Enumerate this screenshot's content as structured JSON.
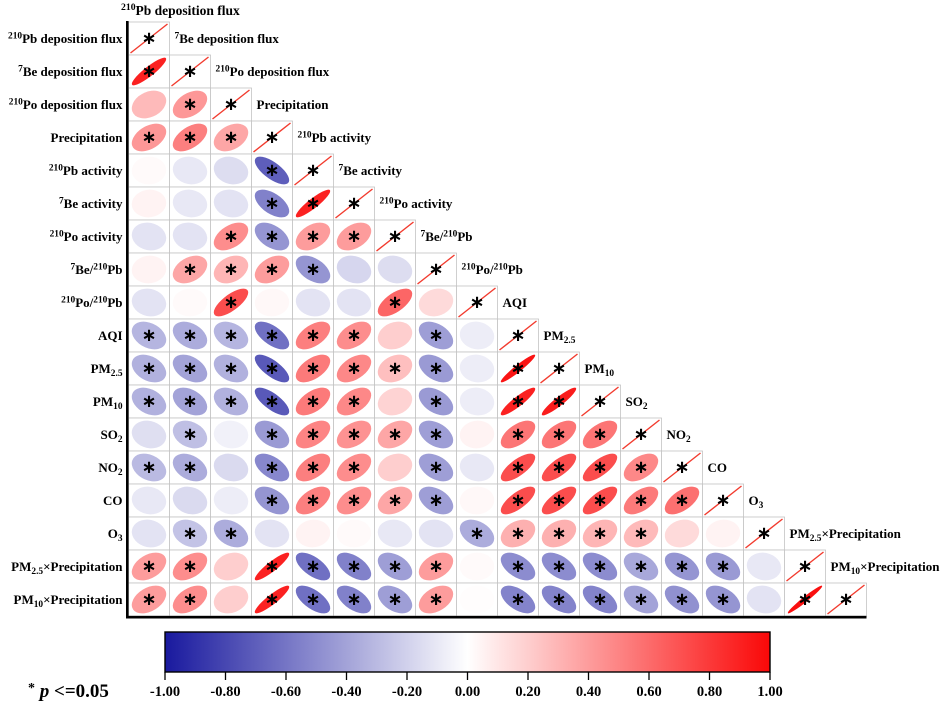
{
  "figure": {
    "legend": {
      "star": "*",
      "p": "p",
      "rest": " <=0.05"
    },
    "colorbar": {
      "min": -1,
      "max": 1,
      "negative_color": "#19199e",
      "zero_color": "#ffffff",
      "positive_color": "#fa0808",
      "ticks": [
        "-1.00",
        "-0.80",
        "-0.60",
        "-0.40",
        "-0.20",
        "0.00",
        "0.20",
        "0.40",
        "0.60",
        "0.80",
        "1.00"
      ]
    }
  },
  "chart_data": {
    "type": "heatmap",
    "subtype": "correlation-ellipse-matrix",
    "significance_marker": "∗",
    "significance_rule": "p <= 0.05",
    "diagonal_value": 1,
    "variables": [
      "^{210}Pb deposition flux",
      "^{7}Be deposition flux",
      "^{210}Po deposition flux",
      "Precipitation",
      "^{210}Pb activity",
      "^{7}Be activity",
      "^{210}Po activity",
      "^{7}Be/^{210}Pb",
      "^{210}Po/^{210}Pb",
      "AQI",
      "PM_{2.5}",
      "PM_{10}",
      "SO_{2}",
      "NO_{2}",
      "CO",
      "O_{3}",
      "PM_{2.5}×Precipitation",
      "PM_{10}×Precipitation"
    ],
    "lower_triangle": [
      [],
      [
        [
          0.9,
          1
        ]
      ],
      [
        [
          0.28,
          0
        ],
        [
          0.42,
          1
        ]
      ],
      [
        [
          0.42,
          1
        ],
        [
          0.52,
          1
        ],
        [
          0.36,
          1
        ]
      ],
      [
        [
          0.02,
          0
        ],
        [
          -0.1,
          0
        ],
        [
          -0.15,
          0
        ],
        [
          -0.7,
          1
        ]
      ],
      [
        [
          0.05,
          0
        ],
        [
          -0.1,
          0
        ],
        [
          -0.12,
          0
        ],
        [
          -0.55,
          1
        ],
        [
          0.9,
          1
        ]
      ],
      [
        [
          -0.12,
          0
        ],
        [
          -0.12,
          0
        ],
        [
          0.46,
          1
        ],
        [
          -0.46,
          1
        ],
        [
          0.4,
          1
        ],
        [
          0.4,
          1
        ]
      ],
      [
        [
          0.05,
          0
        ],
        [
          0.36,
          1
        ],
        [
          0.3,
          1
        ],
        [
          0.4,
          1
        ],
        [
          -0.46,
          1
        ],
        [
          -0.18,
          0
        ],
        [
          -0.15,
          0
        ]
      ],
      [
        [
          -0.12,
          0
        ],
        [
          0.02,
          0
        ],
        [
          0.72,
          1
        ],
        [
          0.03,
          0
        ],
        [
          -0.12,
          0
        ],
        [
          -0.12,
          0
        ],
        [
          0.62,
          1
        ],
        [
          0.15,
          0
        ]
      ],
      [
        [
          -0.32,
          1
        ],
        [
          -0.36,
          1
        ],
        [
          -0.32,
          1
        ],
        [
          -0.62,
          1
        ],
        [
          0.52,
          1
        ],
        [
          0.46,
          1
        ],
        [
          0.2,
          0
        ],
        [
          -0.42,
          1
        ],
        [
          -0.08,
          0
        ]
      ],
      [
        [
          -0.34,
          1
        ],
        [
          -0.4,
          1
        ],
        [
          -0.34,
          1
        ],
        [
          -0.72,
          1
        ],
        [
          0.54,
          1
        ],
        [
          0.48,
          1
        ],
        [
          0.26,
          1
        ],
        [
          -0.44,
          1
        ],
        [
          -0.08,
          0
        ],
        [
          0.95,
          1
        ]
      ],
      [
        [
          -0.34,
          1
        ],
        [
          -0.4,
          1
        ],
        [
          -0.34,
          1
        ],
        [
          -0.72,
          1
        ],
        [
          0.54,
          1
        ],
        [
          0.48,
          1
        ],
        [
          0.18,
          0
        ],
        [
          -0.44,
          1
        ],
        [
          -0.08,
          0
        ],
        [
          0.9,
          1
        ],
        [
          0.92,
          1
        ]
      ],
      [
        [
          -0.14,
          0
        ],
        [
          -0.28,
          1
        ],
        [
          -0.06,
          0
        ],
        [
          -0.44,
          1
        ],
        [
          0.5,
          1
        ],
        [
          0.44,
          1
        ],
        [
          0.36,
          1
        ],
        [
          -0.42,
          1
        ],
        [
          0.05,
          0
        ],
        [
          0.56,
          1
        ],
        [
          0.56,
          1
        ],
        [
          0.56,
          1
        ]
      ],
      [
        [
          -0.3,
          1
        ],
        [
          -0.36,
          1
        ],
        [
          -0.16,
          0
        ],
        [
          -0.52,
          1
        ],
        [
          0.52,
          1
        ],
        [
          0.46,
          1
        ],
        [
          0.2,
          0
        ],
        [
          -0.42,
          1
        ],
        [
          -0.1,
          0
        ],
        [
          0.72,
          1
        ],
        [
          0.72,
          1
        ],
        [
          0.72,
          1
        ],
        [
          0.48,
          1
        ]
      ],
      [
        [
          -0.1,
          0
        ],
        [
          -0.16,
          0
        ],
        [
          -0.08,
          0
        ],
        [
          -0.46,
          1
        ],
        [
          0.52,
          1
        ],
        [
          0.46,
          1
        ],
        [
          0.36,
          1
        ],
        [
          -0.42,
          1
        ],
        [
          0.03,
          0
        ],
        [
          0.72,
          1
        ],
        [
          0.72,
          1
        ],
        [
          0.72,
          1
        ],
        [
          0.54,
          1
        ],
        [
          0.58,
          1
        ]
      ],
      [
        [
          -0.12,
          0
        ],
        [
          -0.26,
          1
        ],
        [
          -0.36,
          1
        ],
        [
          -0.12,
          0
        ],
        [
          0.05,
          0
        ],
        [
          0.02,
          0
        ],
        [
          -0.1,
          0
        ],
        [
          -0.12,
          0
        ],
        [
          -0.36,
          1
        ],
        [
          0.32,
          1
        ],
        [
          0.32,
          1
        ],
        [
          0.3,
          1
        ],
        [
          0.28,
          1
        ],
        [
          0.15,
          0
        ],
        [
          0.05,
          0
        ]
      ],
      [
        [
          0.4,
          1
        ],
        [
          0.46,
          1
        ],
        [
          0.2,
          0
        ],
        [
          0.9,
          1
        ],
        [
          -0.62,
          1
        ],
        [
          -0.55,
          1
        ],
        [
          -0.42,
          1
        ],
        [
          0.4,
          1
        ],
        [
          0.02,
          0
        ],
        [
          -0.5,
          1
        ],
        [
          -0.5,
          1
        ],
        [
          -0.5,
          1
        ],
        [
          -0.38,
          1
        ],
        [
          -0.46,
          1
        ],
        [
          -0.44,
          1
        ],
        [
          -0.1,
          0
        ]
      ],
      [
        [
          0.4,
          1
        ],
        [
          0.46,
          1
        ],
        [
          0.2,
          0
        ],
        [
          0.9,
          1
        ],
        [
          -0.62,
          1
        ],
        [
          -0.55,
          1
        ],
        [
          -0.42,
          1
        ],
        [
          0.4,
          1
        ],
        [
          0.01,
          0
        ],
        [
          -0.54,
          1
        ],
        [
          -0.54,
          1
        ],
        [
          -0.54,
          1
        ],
        [
          -0.4,
          1
        ],
        [
          -0.48,
          1
        ],
        [
          -0.46,
          1
        ],
        [
          -0.12,
          0
        ],
        [
          0.97,
          1
        ]
      ]
    ]
  }
}
